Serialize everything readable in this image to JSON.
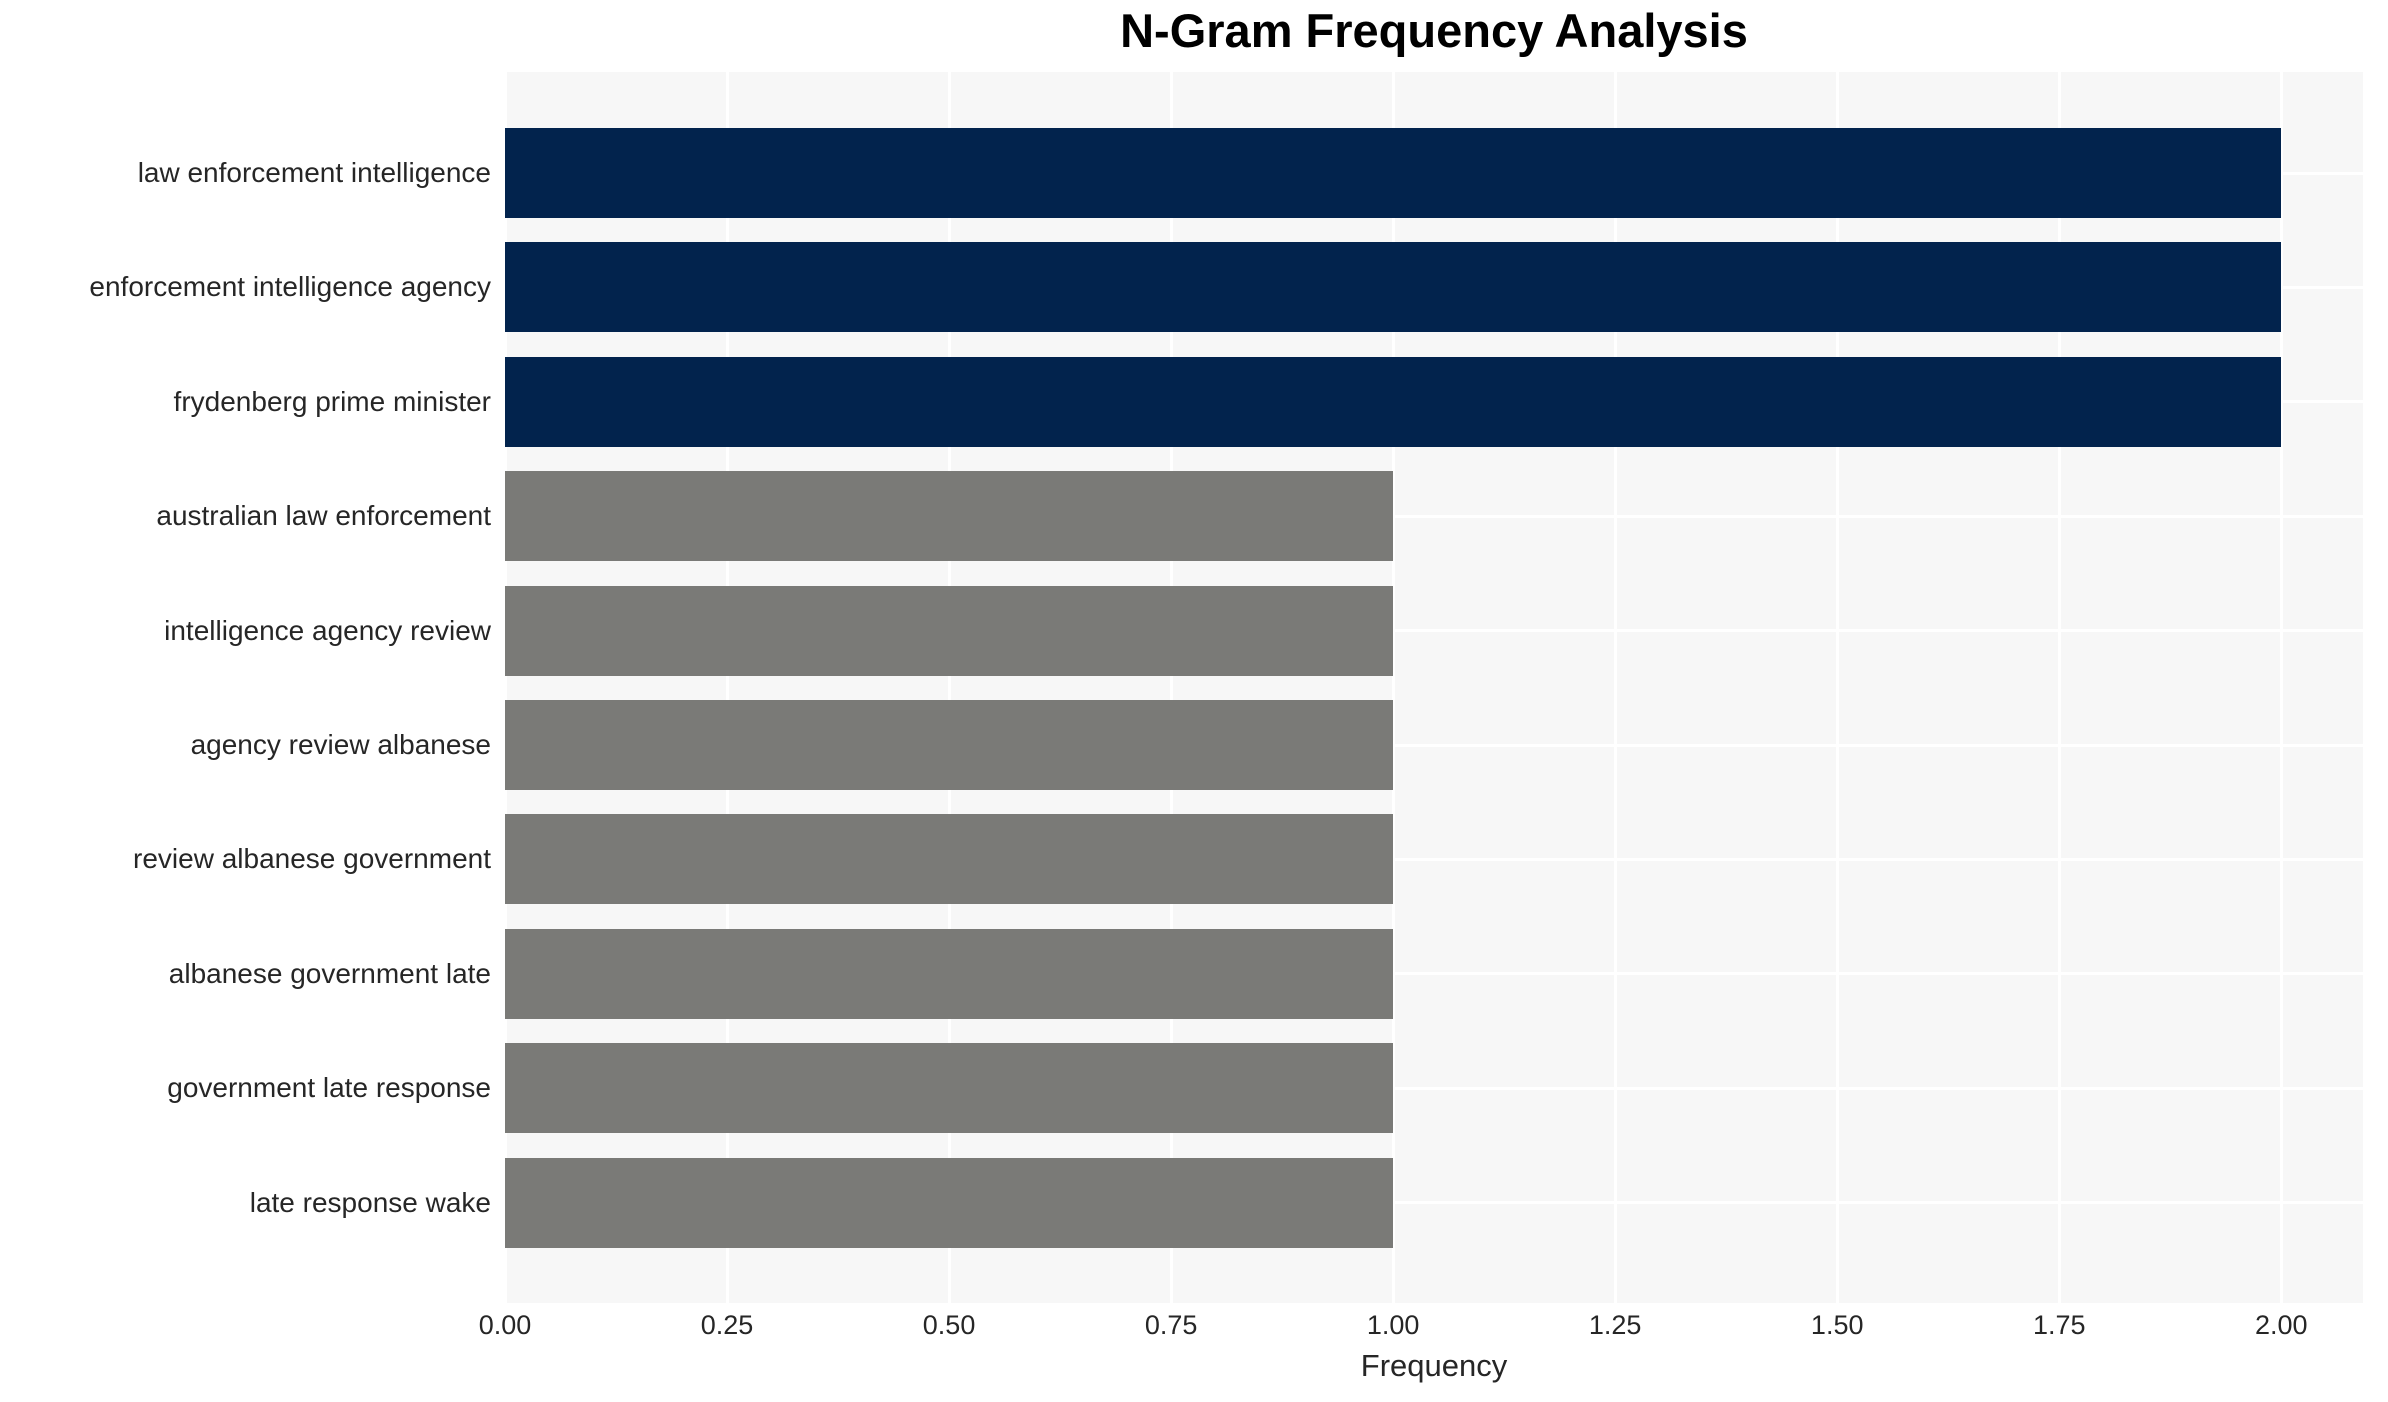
{
  "chart_data": {
    "type": "bar",
    "orientation": "horizontal",
    "title": "N-Gram Frequency Analysis",
    "xlabel": "Frequency",
    "ylabel": "",
    "categories": [
      "law enforcement intelligence",
      "enforcement intelligence agency",
      "frydenberg prime minister",
      "australian law enforcement",
      "intelligence agency review",
      "agency review albanese",
      "review albanese government",
      "albanese government late",
      "government late response",
      "late response wake"
    ],
    "values": [
      2,
      2,
      2,
      1,
      1,
      1,
      1,
      1,
      1,
      1
    ],
    "bar_colors": [
      "#02234D",
      "#02234D",
      "#02234D",
      "#7A7A77",
      "#7A7A77",
      "#7A7A77",
      "#7A7A77",
      "#7A7A77",
      "#7A7A77",
      "#7A7A77"
    ],
    "xlim": [
      0,
      2.092
    ],
    "xticks": [
      0,
      0.25,
      0.5,
      0.75,
      1.0,
      1.25,
      1.5,
      1.75,
      2.0
    ],
    "xtick_labels": [
      "0.00",
      "0.25",
      "0.50",
      "0.75",
      "1.00",
      "1.25",
      "1.50",
      "1.75",
      "2.00"
    ],
    "grid": true,
    "grid_on_both_axes": true,
    "legend": false,
    "colors": {
      "plot_background": "#F7F7F7",
      "gridline": "#FFFFFF",
      "tick_text": "#262626",
      "title_text": "#000000"
    }
  }
}
